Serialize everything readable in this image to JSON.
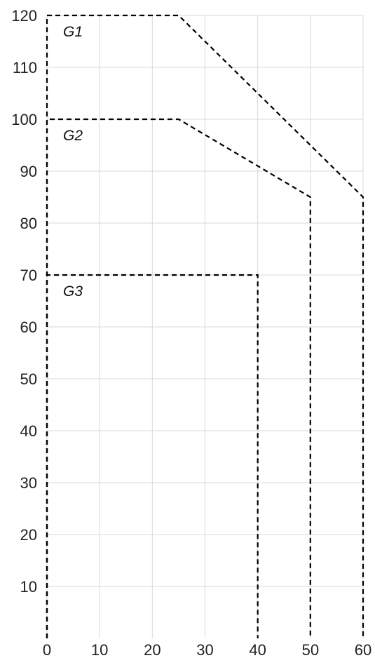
{
  "chart_data": {
    "type": "line",
    "title": "",
    "xlabel": "",
    "ylabel": "",
    "xlim": [
      0,
      60
    ],
    "ylim": [
      0,
      120
    ],
    "x_ticks": [
      0,
      10,
      20,
      30,
      40,
      50,
      60
    ],
    "y_ticks": [
      10,
      20,
      30,
      40,
      50,
      60,
      70,
      80,
      90,
      100,
      110,
      120
    ],
    "grid": true,
    "line_style": "dashed",
    "line_color": "#000000",
    "series": [
      {
        "name": "G1",
        "points": [
          [
            0,
            0
          ],
          [
            0,
            120
          ],
          [
            25,
            120
          ],
          [
            60,
            85
          ],
          [
            60,
            0
          ]
        ]
      },
      {
        "name": "G2",
        "points": [
          [
            0,
            0
          ],
          [
            0,
            100
          ],
          [
            25,
            100
          ],
          [
            40,
            91
          ],
          [
            50,
            85
          ],
          [
            50,
            0
          ]
        ]
      },
      {
        "name": "G3",
        "points": [
          [
            0,
            0
          ],
          [
            0,
            70
          ],
          [
            40,
            70
          ],
          [
            40,
            0
          ]
        ]
      }
    ]
  }
}
